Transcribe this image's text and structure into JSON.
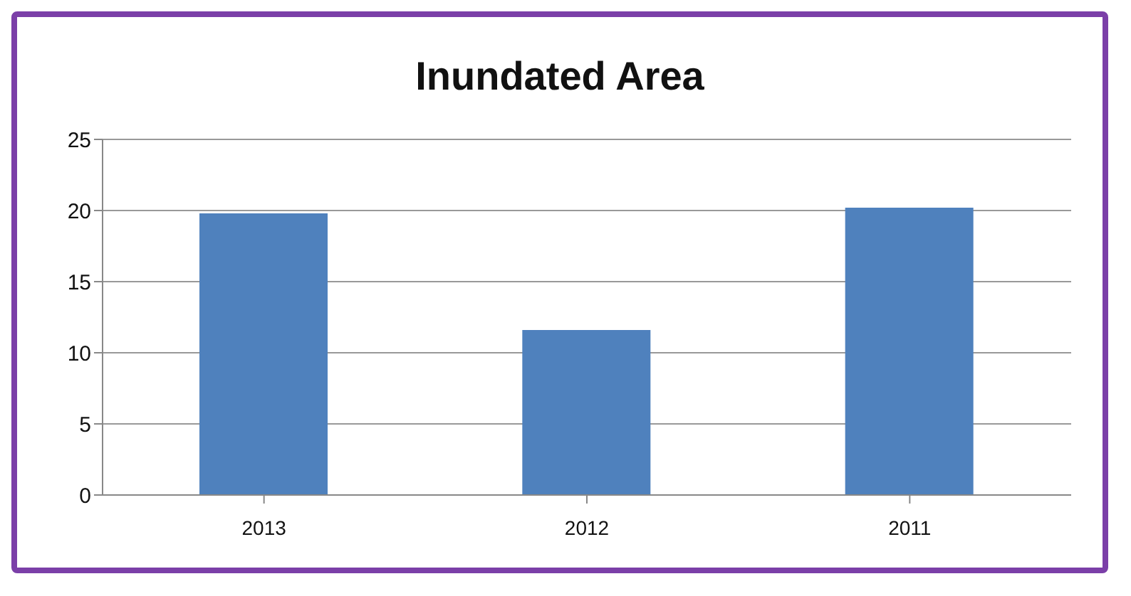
{
  "chart_data": {
    "type": "bar",
    "title": "Inundated Area",
    "categories": [
      "2013",
      "2012",
      "2011"
    ],
    "values": [
      19.8,
      11.6,
      20.2
    ],
    "color": "#4f81bd",
    "ylim": [
      0,
      25
    ],
    "yticks": [
      0,
      5,
      10,
      15,
      20,
      25
    ],
    "grid": "y"
  }
}
